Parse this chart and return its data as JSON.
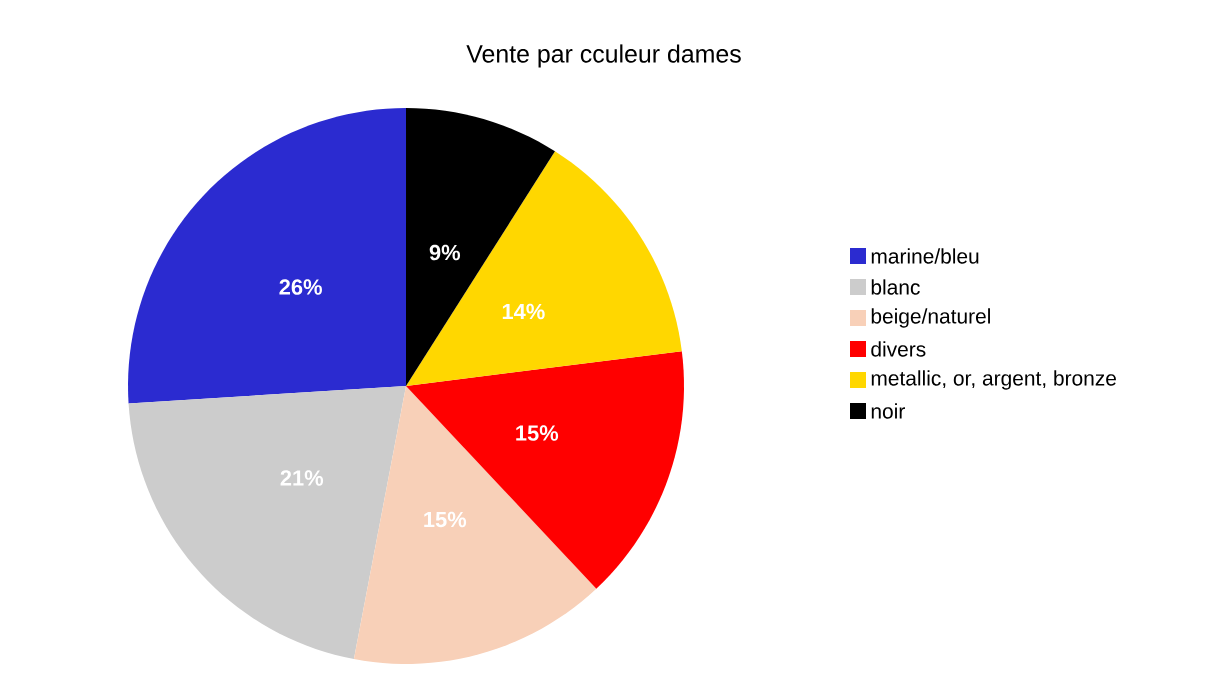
{
  "chart_data": {
    "type": "pie",
    "title": "Vente par cculeur dames",
    "categories": [
      "marine/bleu",
      "blanc",
      "beige/naturel",
      "divers",
      "metallic, or, argent, bronze",
      "noir"
    ],
    "values": [
      26,
      21,
      15,
      15,
      14,
      9
    ],
    "value_labels": [
      "26%",
      "21%",
      "15%",
      "15%",
      "14%",
      "9%"
    ],
    "colors": [
      "#2b2bd0",
      "#cccccc",
      "#f8d0b8",
      "#ff0000",
      "#ffd700",
      "#000000"
    ],
    "legend": "right"
  }
}
